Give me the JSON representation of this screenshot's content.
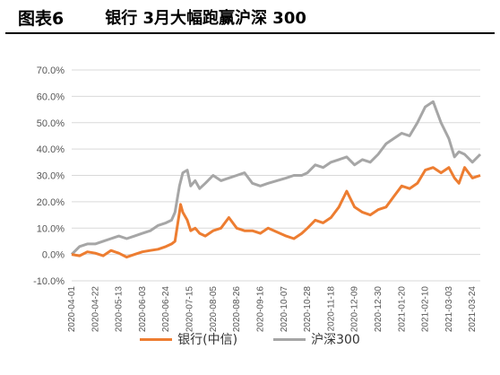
{
  "header": {
    "figure_label": "图表6",
    "title": "银行 3月大幅跑赢沪深 300"
  },
  "colors": {
    "bank": "#ED7D31",
    "hs300": "#A6A6A6"
  },
  "chart_data": {
    "type": "line",
    "ylim": [
      -10,
      70
    ],
    "y_ticks": [
      -10,
      0,
      10,
      20,
      30,
      40,
      50,
      60,
      70
    ],
    "y_tick_labels": [
      "-10.0%",
      "0.0%",
      "10.0%",
      "20.0%",
      "30.0%",
      "40.0%",
      "50.0%",
      "60.0%",
      "70.0%"
    ],
    "x_tick_labels": [
      "2020-04-01",
      "2020-04-22",
      "2020-05-13",
      "2020-06-03",
      "2020-06-24",
      "2020-07-15",
      "2020-08-05",
      "2020-08-26",
      "2020-09-16",
      "2020-10-07",
      "2020-10-28",
      "2020-11-18",
      "2020-12-09",
      "2020-12-30",
      "2021-01-20",
      "2021-02-10",
      "2021-03-03",
      "2021-03-24"
    ],
    "x_start": "2020-04-01",
    "x_end": "2021-03-31",
    "series": [
      {
        "name": "银行(中信)",
        "color_key": "bank",
        "points": [
          [
            "2020-04-01",
            0
          ],
          [
            "2020-04-08",
            -0.5
          ],
          [
            "2020-04-15",
            1
          ],
          [
            "2020-04-22",
            0.5
          ],
          [
            "2020-04-29",
            -0.5
          ],
          [
            "2020-05-06",
            1.5
          ],
          [
            "2020-05-13",
            0.5
          ],
          [
            "2020-05-20",
            -1
          ],
          [
            "2020-05-27",
            0
          ],
          [
            "2020-06-03",
            1
          ],
          [
            "2020-06-10",
            1.5
          ],
          [
            "2020-06-17",
            2
          ],
          [
            "2020-06-24",
            3
          ],
          [
            "2020-06-29",
            4
          ],
          [
            "2020-07-02",
            5
          ],
          [
            "2020-07-06",
            16
          ],
          [
            "2020-07-07",
            19
          ],
          [
            "2020-07-09",
            16
          ],
          [
            "2020-07-13",
            13
          ],
          [
            "2020-07-16",
            9
          ],
          [
            "2020-07-20",
            10
          ],
          [
            "2020-07-24",
            8
          ],
          [
            "2020-07-29",
            7
          ],
          [
            "2020-08-05",
            9
          ],
          [
            "2020-08-12",
            10
          ],
          [
            "2020-08-19",
            14
          ],
          [
            "2020-08-26",
            10
          ],
          [
            "2020-09-02",
            9
          ],
          [
            "2020-09-09",
            9
          ],
          [
            "2020-09-16",
            8
          ],
          [
            "2020-09-23",
            10
          ],
          [
            "2020-10-09",
            7
          ],
          [
            "2020-10-16",
            6
          ],
          [
            "2020-10-23",
            8
          ],
          [
            "2020-10-28",
            10
          ],
          [
            "2020-11-04",
            13
          ],
          [
            "2020-11-11",
            12
          ],
          [
            "2020-11-18",
            14
          ],
          [
            "2020-11-25",
            18
          ],
          [
            "2020-12-02",
            24
          ],
          [
            "2020-12-09",
            18
          ],
          [
            "2020-12-16",
            16
          ],
          [
            "2020-12-23",
            15
          ],
          [
            "2020-12-30",
            17
          ],
          [
            "2021-01-06",
            18
          ],
          [
            "2021-01-13",
            22
          ],
          [
            "2021-01-20",
            26
          ],
          [
            "2021-01-27",
            25
          ],
          [
            "2021-02-03",
            27
          ],
          [
            "2021-02-10",
            32
          ],
          [
            "2021-02-17",
            33
          ],
          [
            "2021-02-24",
            31
          ],
          [
            "2021-03-03",
            33
          ],
          [
            "2021-03-08",
            29
          ],
          [
            "2021-03-12",
            27
          ],
          [
            "2021-03-17",
            33
          ],
          [
            "2021-03-24",
            29
          ],
          [
            "2021-03-31",
            30
          ]
        ]
      },
      {
        "name": "沪深300",
        "color_key": "hs300",
        "points": [
          [
            "2020-04-01",
            0
          ],
          [
            "2020-04-08",
            3
          ],
          [
            "2020-04-15",
            4
          ],
          [
            "2020-04-22",
            4
          ],
          [
            "2020-04-29",
            5
          ],
          [
            "2020-05-06",
            6
          ],
          [
            "2020-05-13",
            7
          ],
          [
            "2020-05-20",
            6
          ],
          [
            "2020-05-27",
            7
          ],
          [
            "2020-06-03",
            8
          ],
          [
            "2020-06-10",
            9
          ],
          [
            "2020-06-17",
            11
          ],
          [
            "2020-06-24",
            12
          ],
          [
            "2020-06-29",
            13
          ],
          [
            "2020-07-02",
            16
          ],
          [
            "2020-07-06",
            26
          ],
          [
            "2020-07-09",
            31
          ],
          [
            "2020-07-13",
            32
          ],
          [
            "2020-07-16",
            26
          ],
          [
            "2020-07-20",
            28
          ],
          [
            "2020-07-24",
            25
          ],
          [
            "2020-07-29",
            27
          ],
          [
            "2020-08-05",
            30
          ],
          [
            "2020-08-12",
            28
          ],
          [
            "2020-08-19",
            29
          ],
          [
            "2020-08-26",
            30
          ],
          [
            "2020-09-02",
            31
          ],
          [
            "2020-09-09",
            27
          ],
          [
            "2020-09-16",
            26
          ],
          [
            "2020-09-23",
            27
          ],
          [
            "2020-10-09",
            29
          ],
          [
            "2020-10-16",
            30
          ],
          [
            "2020-10-23",
            30
          ],
          [
            "2020-10-28",
            31
          ],
          [
            "2020-11-04",
            34
          ],
          [
            "2020-11-11",
            33
          ],
          [
            "2020-11-18",
            35
          ],
          [
            "2020-11-25",
            36
          ],
          [
            "2020-12-02",
            37
          ],
          [
            "2020-12-09",
            34
          ],
          [
            "2020-12-16",
            36
          ],
          [
            "2020-12-23",
            35
          ],
          [
            "2020-12-30",
            38
          ],
          [
            "2021-01-06",
            42
          ],
          [
            "2021-01-13",
            44
          ],
          [
            "2021-01-20",
            46
          ],
          [
            "2021-01-27",
            45
          ],
          [
            "2021-02-03",
            50
          ],
          [
            "2021-02-10",
            56
          ],
          [
            "2021-02-17",
            58
          ],
          [
            "2021-02-24",
            50
          ],
          [
            "2021-03-03",
            44
          ],
          [
            "2021-03-08",
            37
          ],
          [
            "2021-03-12",
            39
          ],
          [
            "2021-03-17",
            38
          ],
          [
            "2021-03-24",
            35
          ],
          [
            "2021-03-31",
            38
          ]
        ]
      }
    ]
  }
}
